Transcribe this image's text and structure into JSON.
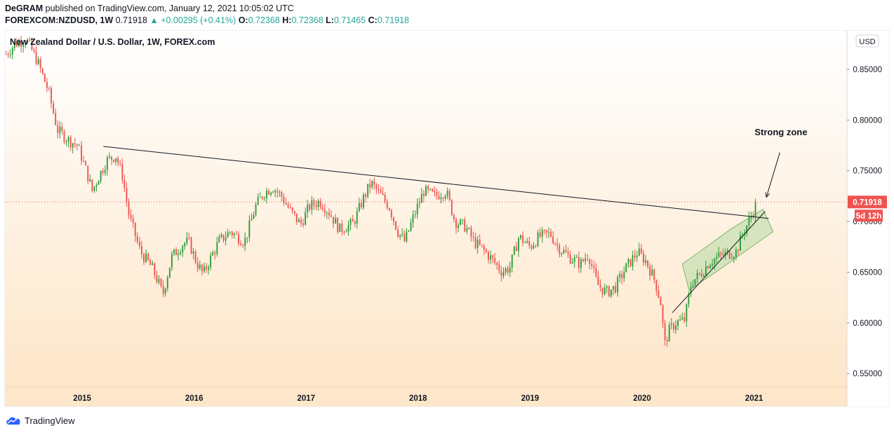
{
  "header": {
    "author": "DeGRAM",
    "published": "published on TradingView.com, January 12, 2021 10:05:02 UTC",
    "symbol": "FOREXCOM:NZDUSD, 1W",
    "last": "0.71918",
    "change": "+0.00295 (+0.41%)",
    "o_label": "O:",
    "o_value": "0.72368",
    "h_label": "H:",
    "h_value": "0.72368",
    "l_label": "L:",
    "l_value": "0.71465",
    "c_label": "C:",
    "c_value": "0.71918"
  },
  "footer": {
    "brand": "TradingView"
  },
  "colors": {
    "up": "#26a69a",
    "upBody": "#2e9c3a",
    "down": "#ef5350",
    "bgTop": "#ffffff",
    "bgBottom": "#fde6c9",
    "price": "#ef5350",
    "channel": "#c5e0b0",
    "channelStroke": "#7fb36a"
  },
  "chart_data": {
    "type": "candlestick",
    "title": "New Zealand Dollar / U.S. Dollar, 1W, FOREX.com",
    "currency_label": "USD",
    "y_ticks": [
      "0.85000",
      "0.80000",
      "0.75000",
      "0.70000",
      "0.65000",
      "0.60000",
      "0.55000"
    ],
    "y_tick_values": [
      0.85,
      0.8,
      0.75,
      0.7,
      0.65,
      0.6,
      0.55
    ],
    "ylim": [
      0.537,
      0.888
    ],
    "x_ticks": [
      "2015",
      "2016",
      "2017",
      "2018",
      "2019",
      "2020",
      "2021"
    ],
    "x_tick_years": [
      2015,
      2016,
      2017,
      2018,
      2019,
      2020,
      2021
    ],
    "xlim": [
      2014.31,
      2021.83
    ],
    "last_price": 0.71918,
    "last_price_label": "0.71918",
    "countdown_label": "5d 12h",
    "annotation": "Strong zone",
    "anchors": [
      [
        2014.32,
        0.865
      ],
      [
        2014.4,
        0.875
      ],
      [
        2014.5,
        0.88
      ],
      [
        2014.6,
        0.858
      ],
      [
        2014.7,
        0.828
      ],
      [
        2014.78,
        0.79
      ],
      [
        2014.88,
        0.78
      ],
      [
        2014.96,
        0.775
      ],
      [
        2015.05,
        0.745
      ],
      [
        2015.09,
        0.73
      ],
      [
        2015.15,
        0.745
      ],
      [
        2015.22,
        0.76
      ],
      [
        2015.3,
        0.765
      ],
      [
        2015.36,
        0.745
      ],
      [
        2015.42,
        0.705
      ],
      [
        2015.52,
        0.67
      ],
      [
        2015.62,
        0.655
      ],
      [
        2015.68,
        0.64
      ],
      [
        2015.72,
        0.628
      ],
      [
        2015.8,
        0.665
      ],
      [
        2015.9,
        0.678
      ],
      [
        2015.95,
        0.68
      ],
      [
        2016.02,
        0.66
      ],
      [
        2016.08,
        0.648
      ],
      [
        2016.13,
        0.66
      ],
      [
        2016.22,
        0.68
      ],
      [
        2016.32,
        0.69
      ],
      [
        2016.45,
        0.68
      ],
      [
        2016.55,
        0.715
      ],
      [
        2016.62,
        0.728
      ],
      [
        2016.7,
        0.734
      ],
      [
        2016.78,
        0.725
      ],
      [
        2016.86,
        0.71
      ],
      [
        2016.95,
        0.697
      ],
      [
        2017.03,
        0.715
      ],
      [
        2017.12,
        0.72
      ],
      [
        2017.2,
        0.71
      ],
      [
        2017.3,
        0.692
      ],
      [
        2017.42,
        0.698
      ],
      [
        2017.52,
        0.725
      ],
      [
        2017.58,
        0.738
      ],
      [
        2017.65,
        0.728
      ],
      [
        2017.74,
        0.715
      ],
      [
        2017.82,
        0.69
      ],
      [
        2017.88,
        0.68
      ],
      [
        2017.96,
        0.705
      ],
      [
        2018.05,
        0.73
      ],
      [
        2018.15,
        0.725
      ],
      [
        2018.25,
        0.73
      ],
      [
        2018.33,
        0.7
      ],
      [
        2018.42,
        0.695
      ],
      [
        2018.5,
        0.68
      ],
      [
        2018.6,
        0.67
      ],
      [
        2018.68,
        0.66
      ],
      [
        2018.75,
        0.65
      ],
      [
        2018.82,
        0.655
      ],
      [
        2018.9,
        0.685
      ],
      [
        2019.0,
        0.675
      ],
      [
        2019.08,
        0.685
      ],
      [
        2019.18,
        0.688
      ],
      [
        2019.25,
        0.675
      ],
      [
        2019.35,
        0.665
      ],
      [
        2019.45,
        0.658
      ],
      [
        2019.52,
        0.668
      ],
      [
        2019.6,
        0.638
      ],
      [
        2019.68,
        0.63
      ],
      [
        2019.76,
        0.635
      ],
      [
        2019.86,
        0.655
      ],
      [
        2019.96,
        0.67
      ],
      [
        2020.04,
        0.66
      ],
      [
        2020.12,
        0.64
      ],
      [
        2020.17,
        0.618
      ],
      [
        2020.2,
        0.578
      ],
      [
        2020.24,
        0.592
      ],
      [
        2020.3,
        0.6
      ],
      [
        2020.38,
        0.603
      ],
      [
        2020.44,
        0.64
      ],
      [
        2020.52,
        0.648
      ],
      [
        2020.6,
        0.66
      ],
      [
        2020.68,
        0.665
      ],
      [
        2020.76,
        0.668
      ],
      [
        2020.84,
        0.67
      ],
      [
        2020.9,
        0.688
      ],
      [
        2020.96,
        0.702
      ],
      [
        2021.02,
        0.718
      ]
    ],
    "trendlines": [
      {
        "name": "descending-resistance",
        "from": [
          2015.19,
          0.774
        ],
        "to": [
          2021.13,
          0.703
        ]
      },
      {
        "name": "ascending-support",
        "from": [
          2020.27,
          0.61
        ],
        "to": [
          2021.1,
          0.71
        ]
      }
    ],
    "channel": [
      [
        2020.36,
        0.658
      ],
      [
        2020.8,
        0.693
      ],
      [
        2021.08,
        0.712
      ],
      [
        2021.17,
        0.69
      ],
      [
        2020.76,
        0.658
      ],
      [
        2020.42,
        0.632
      ]
    ]
  }
}
